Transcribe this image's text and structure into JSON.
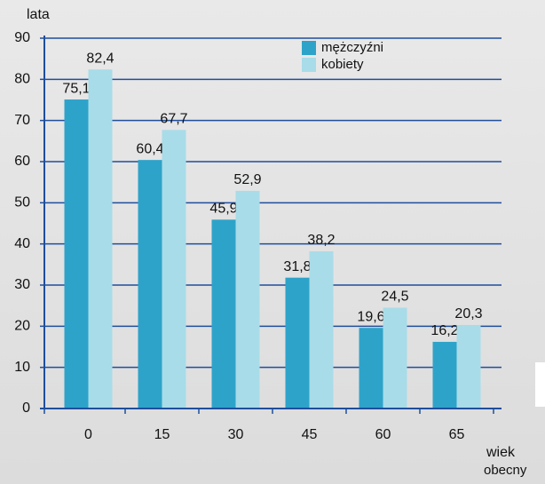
{
  "chart_data": {
    "type": "bar",
    "y_label": "lata",
    "x_label_lines": [
      "wiek",
      "obecny"
    ],
    "categories": [
      "0",
      "15",
      "30",
      "45",
      "60",
      "65"
    ],
    "series": [
      {
        "name": "mężczyźni",
        "color": "#2ea3c9",
        "values": [
          75.1,
          60.4,
          45.9,
          31.8,
          19.6,
          16.2
        ],
        "value_labels": [
          "75,1",
          "60,4",
          "45,9",
          "31,8",
          "19,6",
          "16,2"
        ]
      },
      {
        "name": "kobiety",
        "color": "#a8dce8",
        "values": [
          82.4,
          67.7,
          52.9,
          38.2,
          24.5,
          20.3
        ],
        "value_labels": [
          "82,4",
          "67,7",
          "52,9",
          "38,2",
          "24,5",
          "20,3"
        ]
      }
    ],
    "ylim": [
      0,
      90
    ],
    "yticks": [
      0,
      10,
      20,
      30,
      40,
      50,
      60,
      70,
      80,
      90
    ],
    "grid": true
  }
}
